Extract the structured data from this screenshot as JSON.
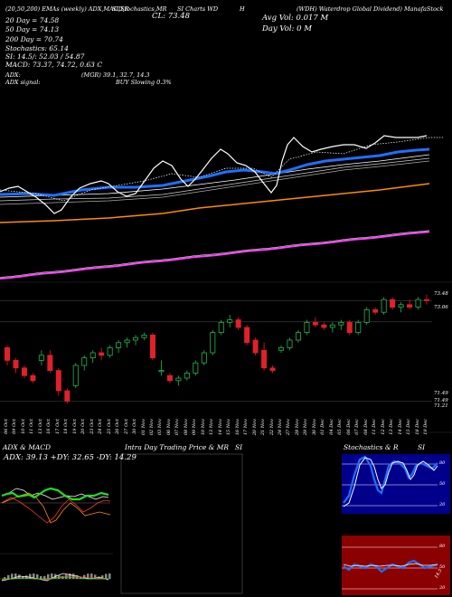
{
  "header": {
    "line1_left": "(20,50,200) EMAs (weekly) ADX,MACD,R",
    "line1_mid1": "SI,Stochastics,MR",
    "line1_mid2": "SI Charts WD",
    "line1_mid3": "H",
    "line1_right": "(WDH) Waterdrop Global Dividend) ManafaStock",
    "cl_label": "CL: 73.48",
    "ema20": "20 Day = 74.58",
    "ema50": "50 Day = 74.13",
    "ema200": "200 Day = 70.74",
    "stoch": "Stochastics: 65.14",
    "si": "SI: 14.5/: 52.03 / 54.87",
    "macd": "MACD: 73.37, 74.72, 0.63 C",
    "avg_vol": "Avg Vol: 0.017 M",
    "day_vol": "Day Vol: 0   M",
    "adx": "ADX:",
    "adx_mgr": "(MGR) 39.1, 32.7, 14.3",
    "adx_signal": "ADX  signal:",
    "buy_signal": "BUY Slowing 0.3%"
  },
  "price_axis": [
    "73.48",
    "73.06",
    "71.49",
    "71.49",
    "71.21"
  ],
  "dates": [
    "06 Oct",
    "09 Oct",
    "10 Oct",
    "11 Oct",
    "13 Oct",
    "16 Oct",
    "17 Oct",
    "18 Oct",
    "19 Oct",
    "20 Oct",
    "23 Oct",
    "24 Oct",
    "25 Oct",
    "26 Oct",
    "27 Oct",
    "30 Oct",
    "01 Nov",
    "02 Nov",
    "03 Nov",
    "06 Nov",
    "07 Nov",
    "08 Nov",
    "09 Nov",
    "10 Nov",
    "13 Nov",
    "14 Nov",
    "15 Nov",
    "16 Nov",
    "17 Nov",
    "20 Nov",
    "21 Nov",
    "22 Nov",
    "24 Nov",
    "27 Nov",
    "28 Nov",
    "29 Nov",
    "30 Nov",
    "01 Dec",
    "04 Dec",
    "05 Dec",
    "06 Dec",
    "07 Dec",
    "08 Dec",
    "11 Dec",
    "12 Dec",
    "13 Dec",
    "14 Dec",
    "15 Dec",
    "18 Dec",
    "19 Dec"
  ],
  "panels": {
    "adx_title": "ADX  & MACD",
    "adx_values": "ADX: 39.13 +DY: 32.65 -DY: 14.29",
    "intraday_title": "Intra  Day Trading Price  & MR",
    "intraday_si": "SI",
    "stoch_title": "Stochastics & R",
    "stoch_si": "SI",
    "stoch_ticks": [
      "80",
      "50",
      "20"
    ],
    "rsi_ticks": [
      "80",
      "50",
      "20"
    ],
    "rsi_value": "14.5"
  },
  "chart_data": {
    "type": "candlestick",
    "title": "",
    "candles": [
      [
        72.55,
        72.6,
        72.2,
        72.3
      ],
      [
        72.3,
        72.35,
        72.05,
        72.15
      ],
      [
        72.15,
        72.2,
        71.95,
        72.0
      ],
      [
        72.0,
        72.05,
        71.85,
        71.9
      ],
      [
        72.3,
        72.5,
        72.2,
        72.4
      ],
      [
        72.4,
        72.5,
        72.05,
        72.1
      ],
      [
        72.1,
        72.15,
        71.6,
        71.7
      ],
      [
        71.7,
        71.75,
        71.45,
        71.5
      ],
      [
        71.8,
        72.25,
        71.75,
        72.2
      ],
      [
        72.2,
        72.4,
        72.1,
        72.35
      ],
      [
        72.35,
        72.5,
        72.25,
        72.45
      ],
      [
        72.45,
        72.55,
        72.3,
        72.4
      ],
      [
        72.4,
        72.6,
        72.35,
        72.55
      ],
      [
        72.55,
        72.7,
        72.45,
        72.65
      ],
      [
        72.65,
        72.75,
        72.55,
        72.7
      ],
      [
        72.7,
        72.8,
        72.6,
        72.75
      ],
      [
        72.75,
        72.85,
        72.7,
        72.8
      ],
      [
        72.8,
        72.85,
        72.3,
        72.35
      ],
      [
        72.1,
        72.3,
        72.0,
        72.1
      ],
      [
        72.0,
        72.05,
        71.85,
        71.9
      ],
      [
        71.9,
        72.0,
        71.8,
        71.95
      ],
      [
        71.95,
        72.1,
        71.9,
        72.05
      ],
      [
        72.05,
        72.3,
        72.0,
        72.25
      ],
      [
        72.25,
        72.5,
        72.2,
        72.45
      ],
      [
        72.45,
        72.9,
        72.4,
        72.85
      ],
      [
        72.85,
        73.1,
        72.8,
        73.05
      ],
      [
        73.05,
        73.2,
        72.95,
        73.1
      ],
      [
        73.1,
        73.15,
        72.9,
        72.95
      ],
      [
        72.95,
        73.0,
        72.6,
        72.65
      ],
      [
        72.7,
        72.75,
        72.4,
        72.45
      ],
      [
        72.5,
        72.65,
        72.1,
        72.15
      ],
      [
        72.15,
        72.2,
        72.05,
        72.1
      ],
      [
        72.5,
        72.6,
        72.45,
        72.55
      ],
      [
        72.55,
        72.75,
        72.5,
        72.7
      ],
      [
        72.7,
        72.9,
        72.65,
        72.85
      ],
      [
        72.85,
        73.1,
        72.8,
        73.05
      ],
      [
        73.05,
        73.15,
        72.95,
        73.0
      ],
      [
        73.0,
        73.05,
        72.9,
        72.95
      ],
      [
        72.95,
        73.05,
        72.85,
        73.0
      ],
      [
        73.0,
        73.1,
        72.9,
        73.05
      ],
      [
        73.05,
        73.1,
        72.8,
        72.85
      ],
      [
        72.85,
        73.1,
        72.8,
        73.05
      ],
      [
        73.05,
        73.35,
        73.0,
        73.3
      ],
      [
        73.3,
        73.35,
        73.2,
        73.25
      ],
      [
        73.25,
        73.55,
        73.2,
        73.5
      ],
      [
        73.5,
        73.55,
        73.3,
        73.35
      ],
      [
        73.35,
        73.45,
        73.25,
        73.4
      ],
      [
        73.4,
        73.5,
        73.3,
        73.35
      ],
      [
        73.35,
        73.55,
        73.3,
        73.5
      ],
      [
        73.5,
        73.6,
        73.4,
        73.48
      ]
    ],
    "ylim": [
      71.2,
      73.7
    ]
  }
}
